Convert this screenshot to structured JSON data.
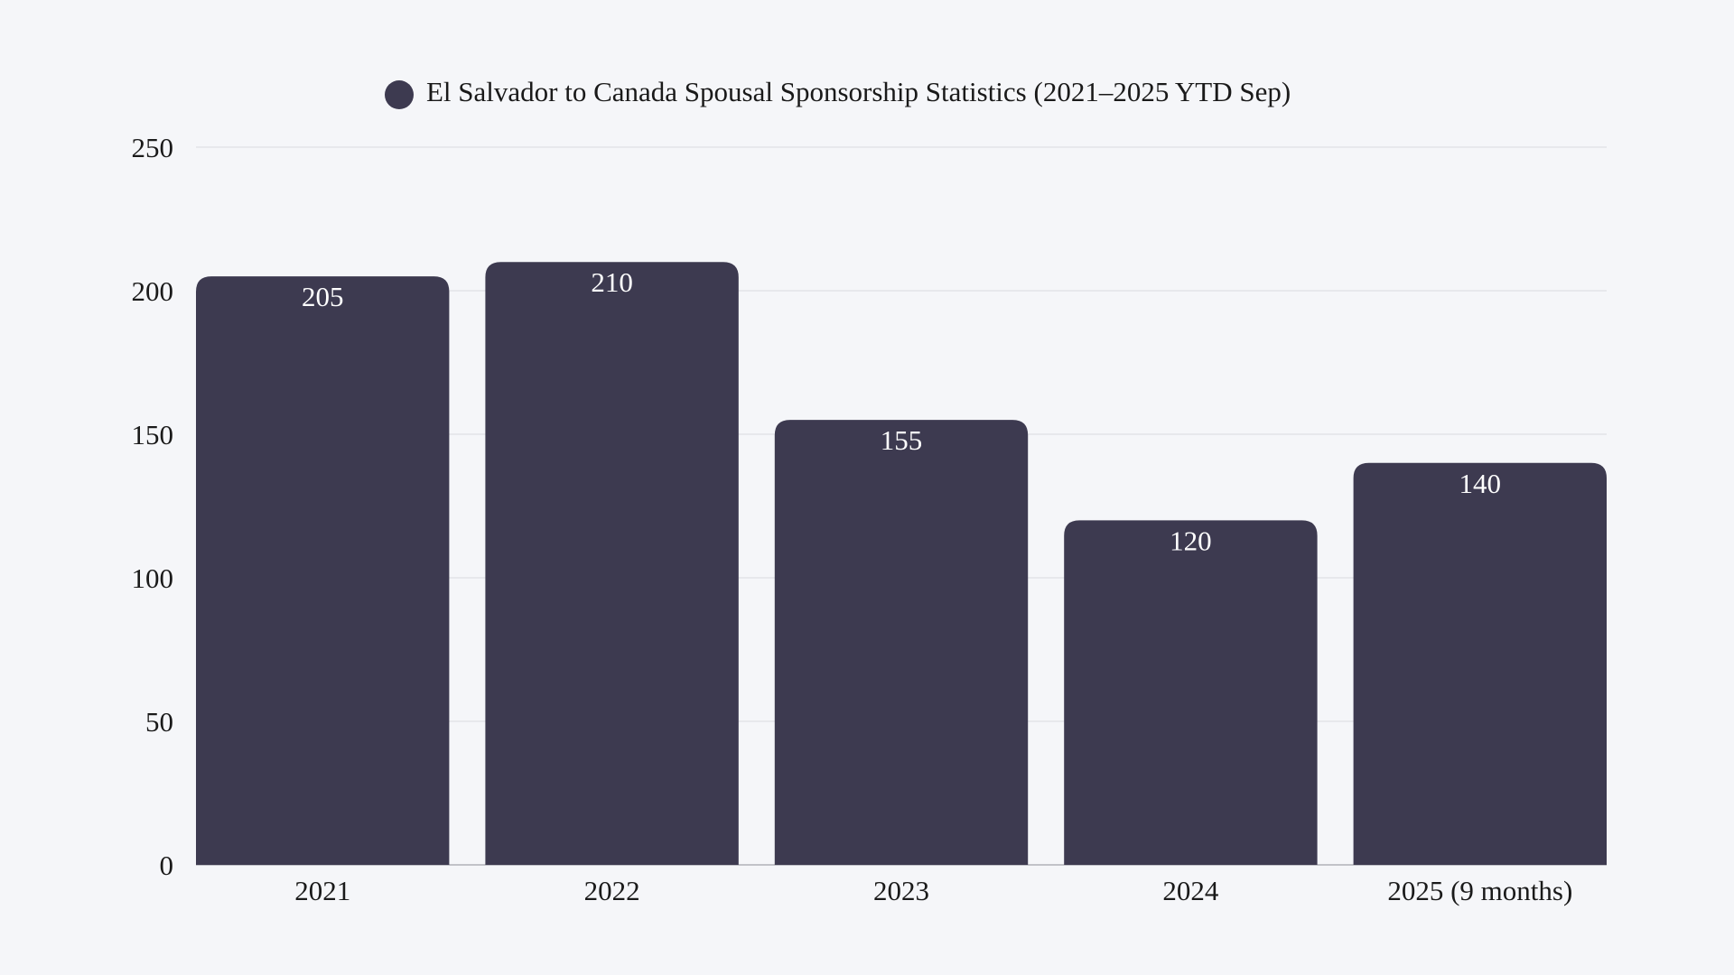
{
  "chart_data": {
    "type": "bar",
    "title": "El Salvador to Canada Spousal Sponsorship Statistics (2021–2025 YTD Sep)",
    "legend": "El Salvador to Canada Spousal Sponsorship Statistics (2021–2025 YTD Sep)",
    "legend_placement": "top",
    "categories": [
      "2021",
      "2022",
      "2023",
      "2024",
      "2025 (9 months)"
    ],
    "values": [
      205,
      210,
      155,
      120,
      140
    ],
    "ylim": [
      0,
      250
    ],
    "yticks": [
      0,
      50,
      100,
      150,
      200,
      250
    ],
    "grid": true,
    "data_labels": true,
    "colors": {
      "bar": "#3d3a50",
      "background": "#f5f6f9",
      "grid": "#dfe0e5",
      "text": "#1a1a1a",
      "label": "#ffffff"
    }
  }
}
